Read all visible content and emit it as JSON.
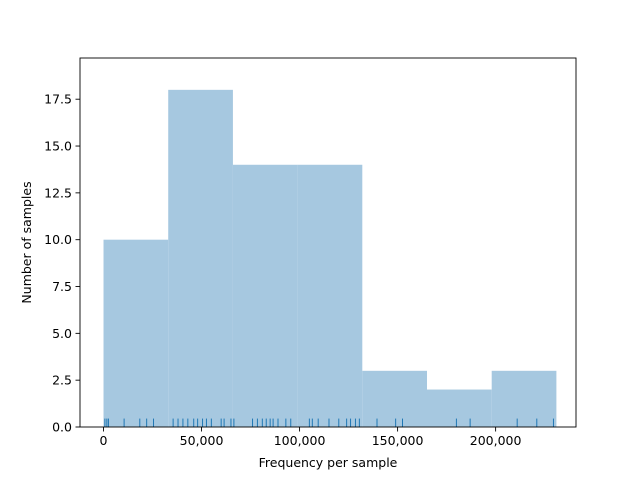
{
  "chart_data": {
    "type": "bar",
    "subtype": "histogram-with-rug",
    "xlabel": "Frequency per sample",
    "ylabel": "Number of samples",
    "xlim": [
      -12000,
      241000
    ],
    "ylim": [
      0,
      19.7
    ],
    "xticks": [
      0,
      50000,
      100000,
      150000,
      200000
    ],
    "xtick_labels": [
      "0",
      "50,000",
      "100,000",
      "150,000",
      "200,000"
    ],
    "yticks": [
      0,
      2.5,
      5,
      7.5,
      10,
      12.5,
      15,
      17.5
    ],
    "ytick_labels": [
      "0.0",
      "2.5",
      "5.0",
      "7.5",
      "10.0",
      "12.5",
      "15.0",
      "17.5"
    ],
    "bins": [
      {
        "start": 0,
        "end": 33000,
        "count": 10
      },
      {
        "start": 33000,
        "end": 66000,
        "count": 18
      },
      {
        "start": 66000,
        "end": 99000,
        "count": 14
      },
      {
        "start": 99000,
        "end": 132000,
        "count": 14
      },
      {
        "start": 132000,
        "end": 165000,
        "count": 3
      },
      {
        "start": 165000,
        "end": 198000,
        "count": 2
      },
      {
        "start": 198000,
        "end": 231000,
        "count": 3
      }
    ],
    "rug": [
      700,
      1700,
      2500,
      10500,
      18500,
      22000,
      25500,
      35500,
      38000,
      40500,
      43000,
      46000,
      48000,
      50500,
      52500,
      55000,
      60000,
      61500,
      65000,
      66500,
      76000,
      78500,
      81000,
      83000,
      85000,
      86500,
      89000,
      93000,
      95500,
      105000,
      106500,
      109500,
      115000,
      120000,
      124000,
      126000,
      128500,
      130500,
      139500,
      149000,
      152500,
      180000,
      187000,
      211000,
      221000,
      229500
    ],
    "grid": false,
    "bar_color": "#a6c8e0",
    "rug_color": "#1f77b4"
  }
}
